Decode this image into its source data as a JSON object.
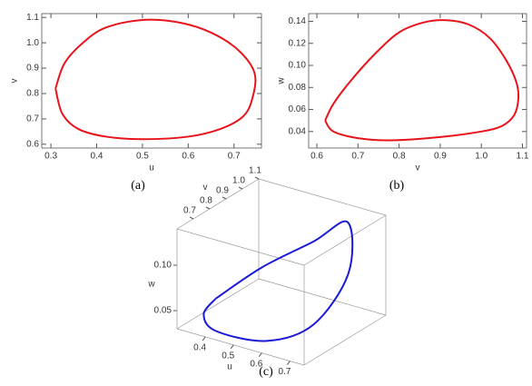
{
  "chart_data": [
    {
      "type": "line",
      "caption": "(a)",
      "xlabel": "u",
      "ylabel": "v",
      "color": "#e8141b",
      "x": [
        0.31,
        0.33,
        0.37,
        0.42,
        0.5,
        0.58,
        0.65,
        0.71,
        0.745,
        0.74,
        0.72,
        0.67,
        0.6,
        0.5,
        0.42,
        0.36,
        0.325,
        0.31
      ],
      "y": [
        0.82,
        0.92,
        1.0,
        1.06,
        1.09,
        1.08,
        1.04,
        0.97,
        0.88,
        0.78,
        0.71,
        0.66,
        0.63,
        0.62,
        0.63,
        0.66,
        0.72,
        0.82
      ],
      "xlim": [
        0.28,
        0.76
      ],
      "xticks": [
        0.3,
        0.4,
        0.5,
        0.6,
        0.7
      ],
      "ylim": [
        0.585,
        1.115
      ],
      "yticks": [
        0.6,
        0.7,
        0.8,
        0.9,
        {
          "value": 1,
          "label": "1.0"
        },
        1.1
      ]
    },
    {
      "type": "line",
      "caption": "(b)",
      "xlabel": "v",
      "ylabel": "w",
      "color": "#e8141b",
      "x": [
        0.62,
        0.64,
        0.68,
        0.74,
        0.8,
        0.86,
        0.915,
        0.97,
        1.02,
        1.06,
        1.085,
        1.09,
        1.08,
        1.05,
        1.0,
        0.9,
        0.78,
        0.7,
        0.64,
        0.62
      ],
      "y": [
        0.05,
        0.065,
        0.085,
        0.11,
        0.13,
        0.139,
        0.141,
        0.137,
        0.125,
        0.105,
        0.085,
        0.07,
        0.055,
        0.045,
        0.04,
        0.035,
        0.032,
        0.034,
        0.04,
        0.05
      ],
      "xlim": [
        0.58,
        1.11
      ],
      "xticks": [
        0.6,
        0.7,
        0.8,
        0.9,
        {
          "value": 1,
          "label": "1.0"
        },
        1.1
      ],
      "ylim": [
        0.025,
        0.147
      ],
      "yticks": [
        0.04,
        0.06,
        0.08,
        {
          "value": 0.1,
          "label": "0.10"
        },
        0.12,
        0.14
      ]
    },
    {
      "type": "line3d",
      "caption": "(c)",
      "xlabel": "u",
      "ylabel": "v",
      "zlabel": "w",
      "color": "#1a1ad6",
      "x": [
        0.31,
        0.37,
        0.5,
        0.65,
        0.745,
        0.72,
        0.6,
        0.42,
        0.325,
        0.31
      ],
      "y": [
        0.82,
        1.0,
        1.09,
        1.04,
        0.88,
        0.71,
        0.63,
        0.63,
        0.72,
        0.82
      ],
      "z": [
        0.04,
        0.06,
        0.09,
        0.13,
        0.1,
        0.06,
        0.04,
        0.035,
        0.035,
        0.04
      ],
      "xlim": [
        0.3,
        0.75
      ],
      "xticks": [
        0.4,
        0.5,
        0.6,
        0.7
      ],
      "ylim": [
        0.6,
        1.1
      ],
      "yticks": [
        0.7,
        0.8,
        0.9,
        {
          "value": 1,
          "label": "1.0"
        },
        1.1
      ],
      "zlim": [
        0.03,
        0.14
      ],
      "zticks": [
        0.05,
        {
          "value": 0.1,
          "label": "0.10"
        }
      ]
    }
  ]
}
